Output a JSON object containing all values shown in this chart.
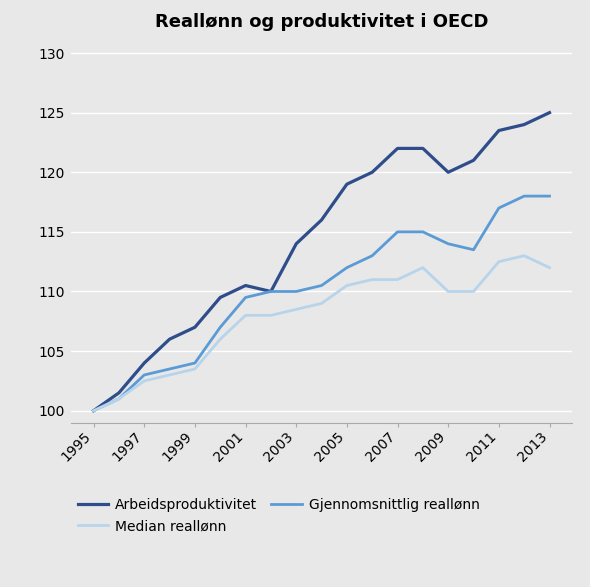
{
  "title": "Reallønn og produktivitet i OECD",
  "years": [
    1995,
    1996,
    1997,
    1998,
    1999,
    2000,
    2001,
    2002,
    2003,
    2004,
    2005,
    2006,
    2007,
    2008,
    2009,
    2010,
    2011,
    2012,
    2013
  ],
  "arbeidsproduktivitet": [
    100,
    101.5,
    104,
    106,
    107,
    109.5,
    110.5,
    110,
    114,
    116,
    119,
    120,
    122,
    122,
    120,
    121,
    123.5,
    124,
    125
  ],
  "gjennomsnittlig_reallann": [
    100,
    101,
    103,
    103.5,
    104,
    107,
    109.5,
    110,
    110,
    110.5,
    112,
    113,
    115,
    115,
    114,
    113.5,
    117,
    118,
    118
  ],
  "median_reallann": [
    100,
    101,
    102.5,
    103,
    103.5,
    106,
    108,
    108,
    108.5,
    109,
    110.5,
    111,
    111,
    112,
    110,
    110,
    112.5,
    113,
    112
  ],
  "series_colors": {
    "arbeidsproduktivitet": "#2e4d8a",
    "gjennomsnittlig_reallann": "#5b9bd5",
    "median_reallann": "#b8d4ea"
  },
  "ylim": [
    99,
    131
  ],
  "yticks": [
    100,
    105,
    110,
    115,
    120,
    125,
    130
  ],
  "xtick_years": [
    1995,
    1997,
    1999,
    2001,
    2003,
    2005,
    2007,
    2009,
    2011,
    2013
  ],
  "background_color": "#e8e8e8",
  "plot_background_color": "#e8e8e8",
  "line_width": 2.0,
  "grid_color": "#ffffff",
  "title_fontsize": 13,
  "tick_fontsize": 10,
  "legend_fontsize": 10
}
